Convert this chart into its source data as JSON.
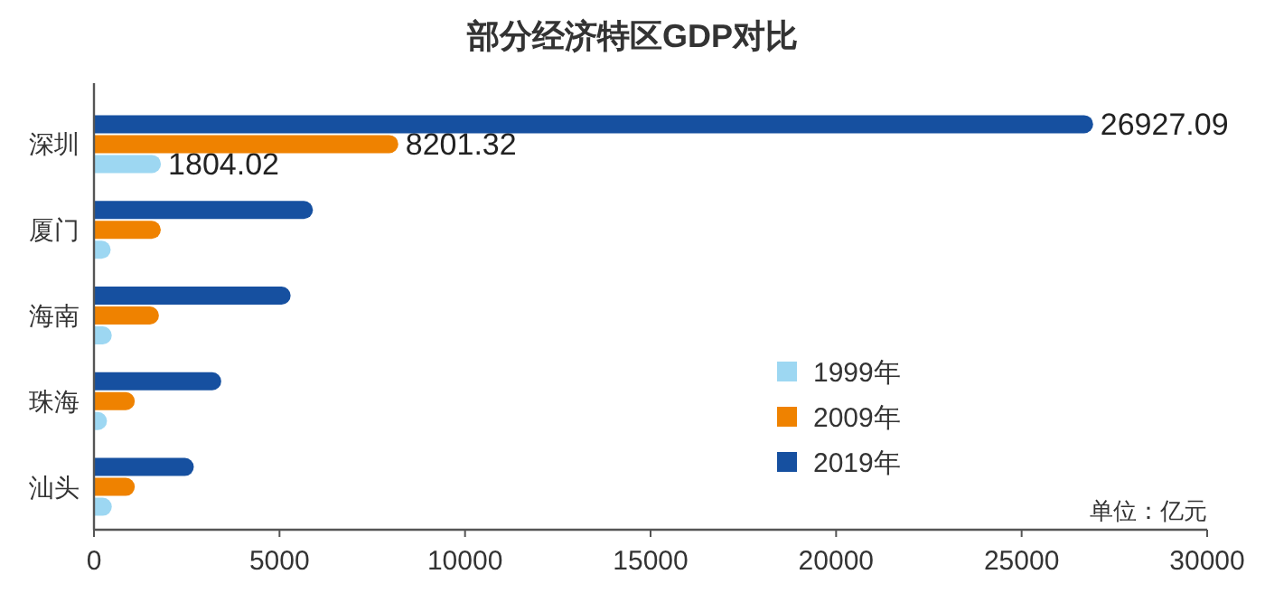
{
  "chart_data": {
    "type": "bar",
    "orientation": "horizontal",
    "title": "部分经济特区GDP对比",
    "categories": [
      "深圳",
      "厦门",
      "海南",
      "珠海",
      "汕头"
    ],
    "series": [
      {
        "name": "1999年",
        "color": "#9dd7f2",
        "values": [
          1804.02,
          450,
          480,
          350,
          480
        ],
        "value_labels": [
          "1804.02",
          null,
          null,
          null,
          null
        ]
      },
      {
        "name": "2009年",
        "color": "#ef8200",
        "values": [
          8201.32,
          1800,
          1750,
          1100,
          1100
        ],
        "value_labels": [
          "8201.32",
          null,
          null,
          null,
          null
        ]
      },
      {
        "name": "2019年",
        "color": "#1650a0",
        "values": [
          26927.09,
          5900,
          5300,
          3430,
          2690
        ],
        "value_labels": [
          "26927.09",
          null,
          null,
          null,
          null
        ]
      }
    ],
    "xlim": [
      0,
      30000
    ],
    "xticks": [
      0,
      5000,
      10000,
      15000,
      20000,
      25000,
      30000
    ],
    "annotations": [
      "单位：亿元"
    ],
    "legend": "bottom right",
    "grid": false
  }
}
